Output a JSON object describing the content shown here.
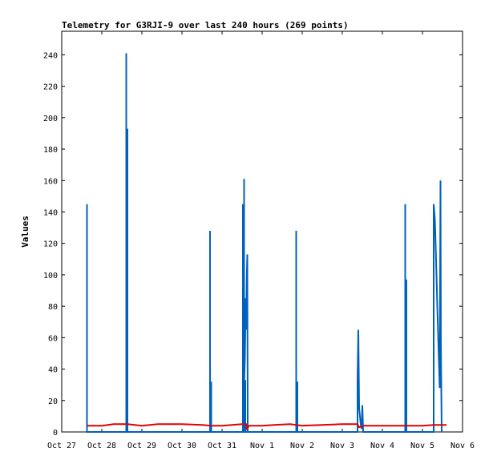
{
  "chart_data": {
    "type": "line",
    "title": "Telemetry for G3RJI-9 over last 240 hours (269 points)",
    "ylabel": "Values",
    "xlabel": "",
    "ylim": [
      0,
      255
    ],
    "yticks": [
      0,
      20,
      40,
      60,
      80,
      100,
      120,
      140,
      160,
      180,
      200,
      220,
      240
    ],
    "x_ticks": [
      {
        "label": "Oct 27",
        "day": 0
      },
      {
        "label": "Oct 28",
        "day": 1
      },
      {
        "label": "Oct 29",
        "day": 2
      },
      {
        "label": "Oct 30",
        "day": 3
      },
      {
        "label": "Oct 31",
        "day": 4
      },
      {
        "label": "Nov 1",
        "day": 5
      },
      {
        "label": "Nov 2",
        "day": 6
      },
      {
        "label": "Nov 3",
        "day": 7
      },
      {
        "label": "Nov 4",
        "day": 8
      },
      {
        "label": "Nov 5",
        "day": 9
      },
      {
        "label": "Nov 6",
        "day": 10
      }
    ],
    "xlim_days": [
      0,
      10
    ],
    "grid": false,
    "series": [
      {
        "color": "#0060c0",
        "style": "spikes",
        "points": [
          [
            0.63,
            0
          ],
          [
            0.63,
            145
          ],
          [
            0.63,
            0
          ],
          [
            1.61,
            0
          ],
          [
            1.61,
            241
          ],
          [
            1.61,
            0
          ],
          [
            1.64,
            0
          ],
          [
            1.64,
            193
          ],
          [
            1.64,
            0
          ],
          [
            3.7,
            0
          ],
          [
            3.7,
            128
          ],
          [
            3.7,
            0
          ],
          [
            3.73,
            0
          ],
          [
            3.73,
            32
          ],
          [
            3.73,
            0
          ],
          [
            4.52,
            0
          ],
          [
            4.52,
            145
          ],
          [
            4.52,
            0
          ],
          [
            4.55,
            0
          ],
          [
            4.55,
            161
          ],
          [
            4.55,
            30
          ],
          [
            4.57,
            47
          ],
          [
            4.59,
            85
          ],
          [
            4.6,
            65
          ],
          [
            4.62,
            103
          ],
          [
            4.63,
            113
          ],
          [
            4.64,
            0
          ],
          [
            4.58,
            0
          ],
          [
            4.58,
            33
          ],
          [
            4.58,
            0
          ],
          [
            5.85,
            0
          ],
          [
            5.85,
            128
          ],
          [
            5.85,
            0
          ],
          [
            5.88,
            0
          ],
          [
            5.88,
            32
          ],
          [
            5.88,
            0
          ],
          [
            7.38,
            0
          ],
          [
            7.38,
            33
          ],
          [
            7.4,
            65
          ],
          [
            7.42,
            15
          ],
          [
            7.44,
            10
          ],
          [
            7.46,
            5
          ],
          [
            7.48,
            2
          ],
          [
            7.5,
            17
          ],
          [
            7.52,
            0
          ],
          [
            8.57,
            0
          ],
          [
            8.57,
            145
          ],
          [
            8.57,
            0
          ],
          [
            8.6,
            0
          ],
          [
            8.6,
            97
          ],
          [
            8.6,
            0
          ],
          [
            9.28,
            0
          ],
          [
            9.28,
            145
          ],
          [
            9.31,
            135
          ],
          [
            9.33,
            118
          ],
          [
            9.35,
            100
          ],
          [
            9.37,
            80
          ],
          [
            9.39,
            63
          ],
          [
            9.41,
            45
          ],
          [
            9.43,
            28
          ],
          [
            9.45,
            160
          ],
          [
            9.46,
            55
          ],
          [
            9.48,
            0
          ]
        ]
      },
      {
        "color": "#e00000",
        "style": "line",
        "points": [
          [
            0.63,
            4
          ],
          [
            1.0,
            4
          ],
          [
            1.3,
            5
          ],
          [
            1.64,
            5
          ],
          [
            2.0,
            4
          ],
          [
            2.4,
            5
          ],
          [
            3.0,
            5
          ],
          [
            3.5,
            4.5
          ],
          [
            3.72,
            4
          ],
          [
            4.0,
            4
          ],
          [
            4.5,
            5
          ],
          [
            4.6,
            5
          ],
          [
            4.62,
            2
          ],
          [
            4.68,
            4
          ],
          [
            5.0,
            4
          ],
          [
            5.3,
            4.5
          ],
          [
            5.7,
            5
          ],
          [
            6.0,
            4
          ],
          [
            6.5,
            4.5
          ],
          [
            7.0,
            5
          ],
          [
            7.38,
            5
          ],
          [
            7.42,
            3
          ],
          [
            7.55,
            4
          ],
          [
            8.0,
            4
          ],
          [
            8.5,
            4
          ],
          [
            9.0,
            4
          ],
          [
            9.28,
            4.5
          ],
          [
            9.6,
            4.5
          ]
        ]
      }
    ]
  }
}
